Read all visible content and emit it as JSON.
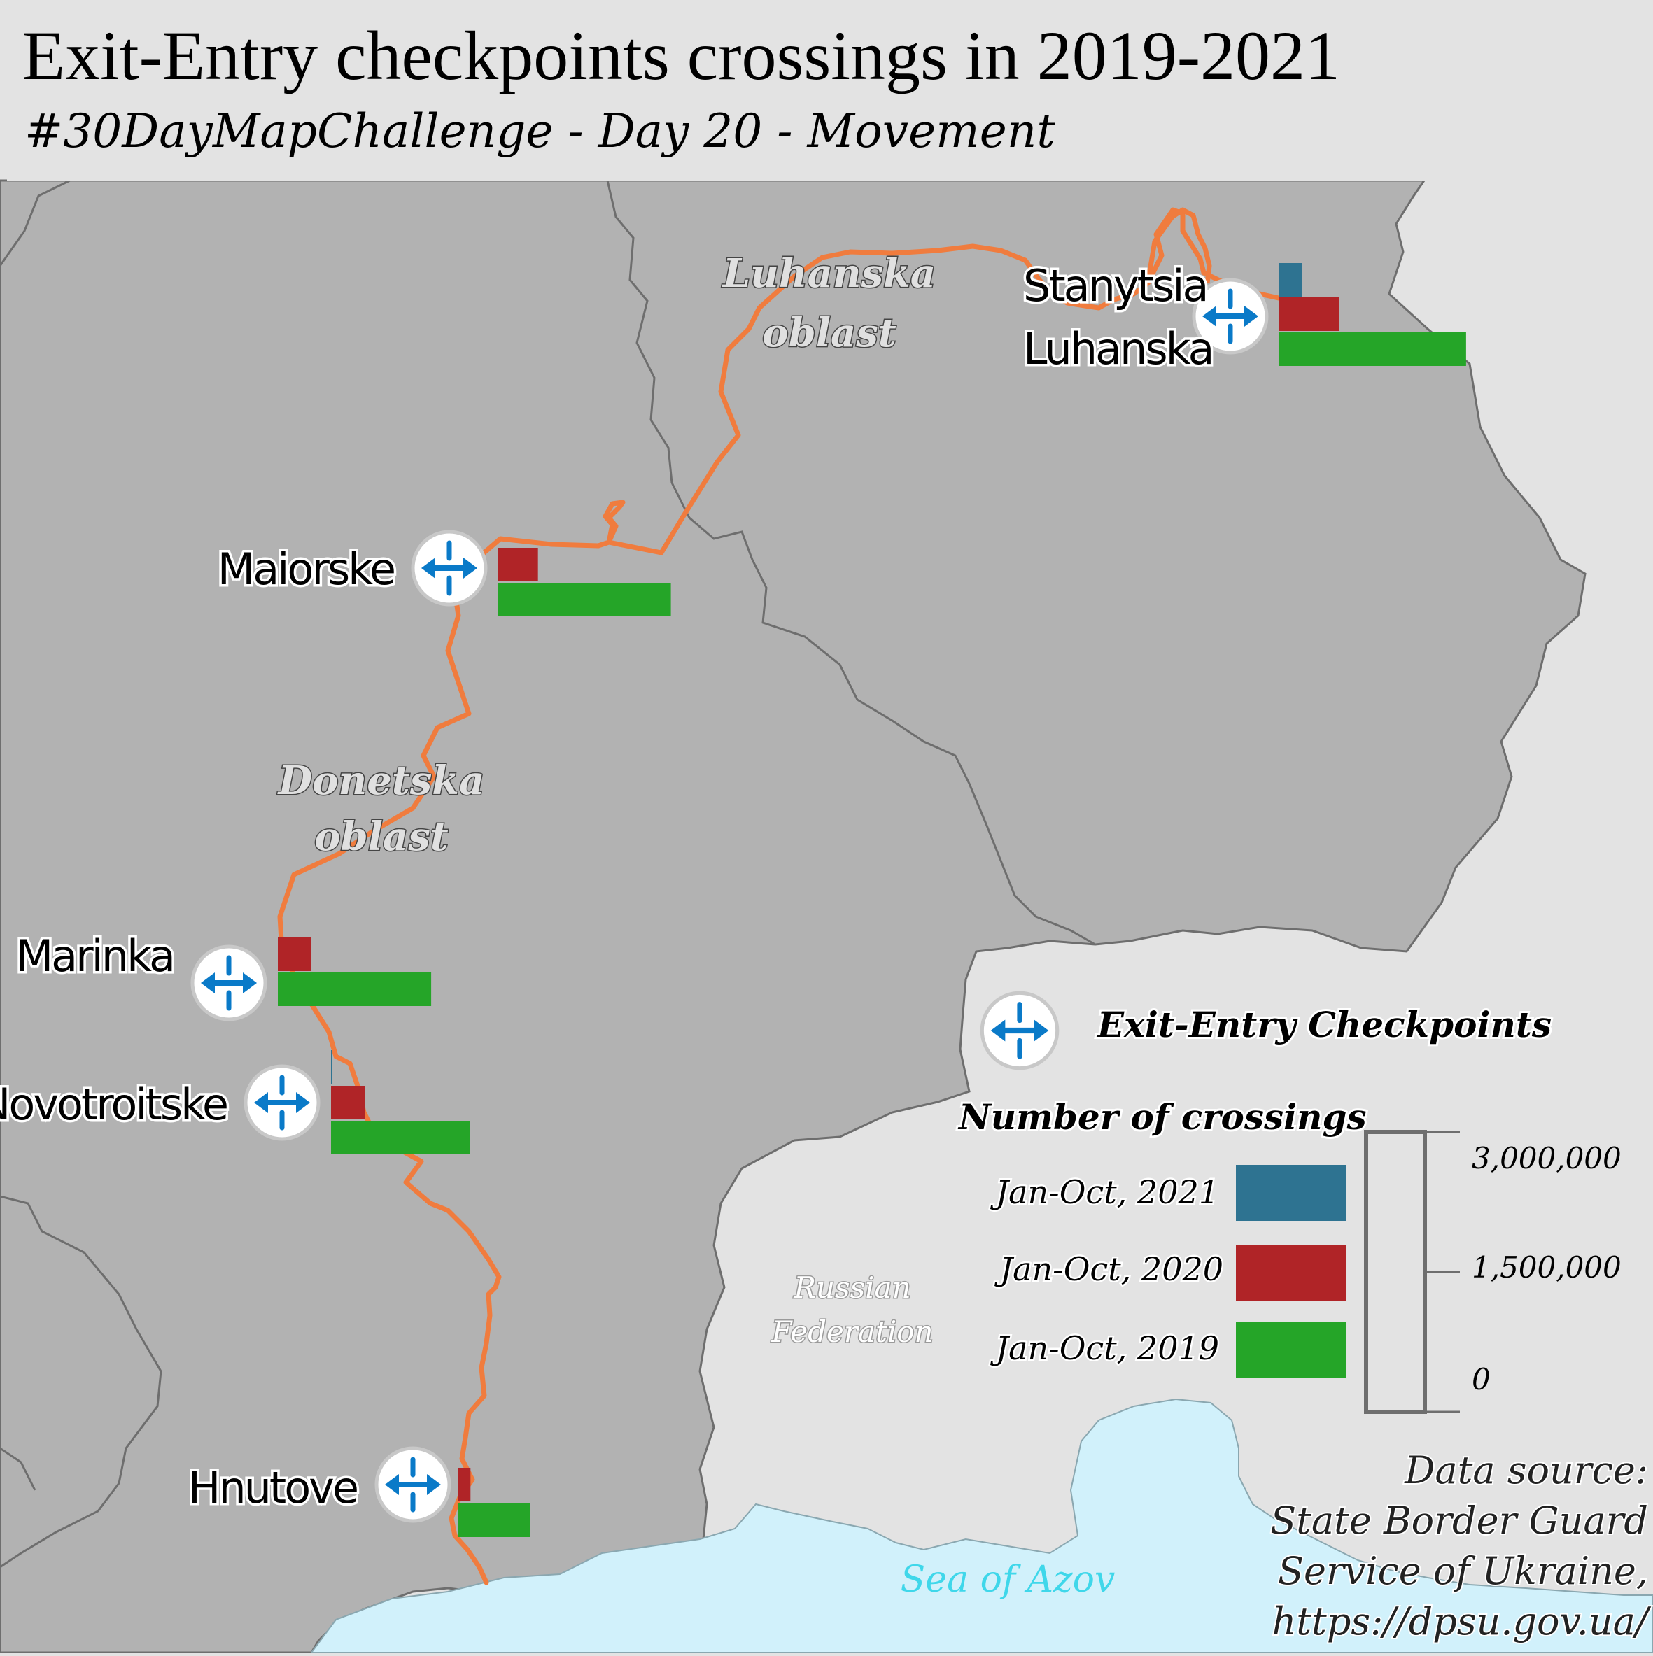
{
  "header": {
    "title": "Exit-Entry checkpoints crossings in 2019-2021",
    "subtitle": "#30DayMapChallenge - Day 20 - Movement"
  },
  "map": {
    "oblasts": [
      "Luhanska oblast",
      "Donetska oblast"
    ],
    "oblast_label_lines": {
      "luhanska": [
        "Luhanska",
        "oblast"
      ],
      "donetska": [
        "Donetska",
        "oblast"
      ]
    },
    "country_label_lines": [
      "Russian",
      "Federation"
    ],
    "sea_label": "Sea of Azov",
    "colors": {
      "oblast_fill": "#b2b2b2",
      "russia_fill": "#e3e3e3",
      "sea_fill": "#d1f1fb",
      "contact_line": "#f07c3e",
      "icon_blue": "#0a7ac8"
    }
  },
  "checkpoints": [
    {
      "name": "Stanytsia Luhanska",
      "label_lines": [
        "Stanytsia",
        "Luhanska"
      ],
      "y2021": 540000,
      "y2020": 1440000,
      "y2019": 4470000
    },
    {
      "name": "Maiorske",
      "label_lines": [
        "Maiorske"
      ],
      "y2021": 0,
      "y2020": 950000,
      "y2019": 4130000
    },
    {
      "name": "Marinka",
      "label_lines": [
        "Marinka"
      ],
      "y2021": 0,
      "y2020": 790000,
      "y2019": 3670000
    },
    {
      "name": "Novotroitske",
      "label_lines": [
        "Novotroitske"
      ],
      "y2021": 30000,
      "y2020": 810000,
      "y2019": 3330000
    },
    {
      "name": "Hnutove",
      "label_lines": [
        "Hnutove"
      ],
      "y2021": 0,
      "y2020": 290000,
      "y2019": 1710000
    }
  ],
  "legend": {
    "icon_label": "Exit-Entry Checkpoints",
    "icon_name": "exit-entry-checkpoint-icon",
    "title": "Number of crossings",
    "series": [
      {
        "label": "Jan-Oct, 2021",
        "color": "#2e7391"
      },
      {
        "label": "Jan-Oct, 2020",
        "color": "#b02427"
      },
      {
        "label": "Jan-Oct, 2019",
        "color": "#25a528"
      }
    ],
    "scale_labels": [
      "3,000,000",
      "1,500,000",
      "0"
    ],
    "scale_max": 3000000
  },
  "source_lines": [
    "Data source:",
    "State Border Guard",
    "Service of Ukraine,",
    "https://dpsu.gov.ua/"
  ]
}
